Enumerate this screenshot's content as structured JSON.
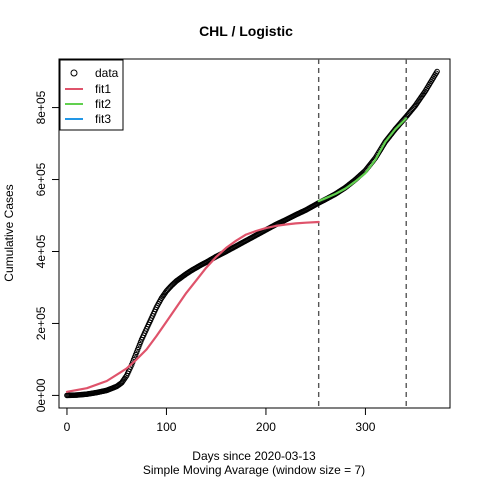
{
  "chart_data": {
    "type": "line",
    "title": "CHL / Logistic",
    "xlabel": "Days since 2020-03-13",
    "subtitle": "Simple Moving Avarage (window size = 7)",
    "ylabel": "Cumulative Cases",
    "xlim": [
      -8,
      385
    ],
    "ylim": [
      -35000,
      935000
    ],
    "x_ticks": [
      0,
      100,
      200,
      300
    ],
    "x_tick_labels": [
      "0",
      "100",
      "200",
      "300"
    ],
    "y_ticks": [
      0,
      200000,
      400000,
      600000,
      800000
    ],
    "y_tick_labels": [
      "0e+00",
      "2e+05",
      "4e+05",
      "6e+05",
      "8e+05"
    ],
    "grid": false,
    "legend_position": "top-left",
    "vlines": [
      253,
      341
    ],
    "series": [
      {
        "name": "data",
        "kind": "points",
        "color": "#000000",
        "x": [
          0,
          10,
          20,
          30,
          40,
          50,
          55,
          60,
          65,
          70,
          75,
          80,
          85,
          90,
          95,
          100,
          105,
          110,
          115,
          120,
          125,
          130,
          135,
          140,
          150,
          160,
          170,
          180,
          190,
          200,
          210,
          220,
          230,
          240,
          253,
          260,
          270,
          280,
          290,
          300,
          310,
          320,
          330,
          341,
          350,
          360,
          372
        ],
        "y": [
          0,
          1000,
          3500,
          8000,
          14000,
          25000,
          35000,
          55000,
          85000,
          120000,
          155000,
          185000,
          215000,
          245000,
          270000,
          290000,
          305000,
          318000,
          328000,
          338000,
          347000,
          355000,
          363000,
          370000,
          386000,
          400000,
          415000,
          430000,
          445000,
          460000,
          475000,
          488000,
          502000,
          515000,
          535000,
          545000,
          560000,
          578000,
          600000,
          625000,
          660000,
          705000,
          740000,
          775000,
          805000,
          845000,
          900000
        ]
      },
      {
        "name": "fit1",
        "kind": "line",
        "color": "#DF536B",
        "x": [
          0,
          20,
          40,
          60,
          70,
          80,
          90,
          100,
          110,
          120,
          130,
          140,
          150,
          160,
          170,
          180,
          190,
          200,
          210,
          220,
          230,
          240,
          253
        ],
        "y": [
          10000,
          20000,
          40000,
          75000,
          100000,
          128000,
          165000,
          205000,
          245000,
          285000,
          320000,
          355000,
          385000,
          410000,
          430000,
          447000,
          457000,
          465000,
          471000,
          475000,
          478000,
          480000,
          482000
        ]
      },
      {
        "name": "fit2",
        "kind": "line",
        "color": "#61D04F",
        "x": [
          253,
          260,
          270,
          280,
          290,
          300,
          310,
          320,
          330,
          341
        ],
        "y": [
          540000,
          548000,
          560000,
          575000,
          595000,
          618000,
          655000,
          705000,
          740000,
          770000
        ]
      },
      {
        "name": "fit3",
        "kind": "line",
        "color": "#2297E6",
        "x": [],
        "y": []
      }
    ]
  }
}
